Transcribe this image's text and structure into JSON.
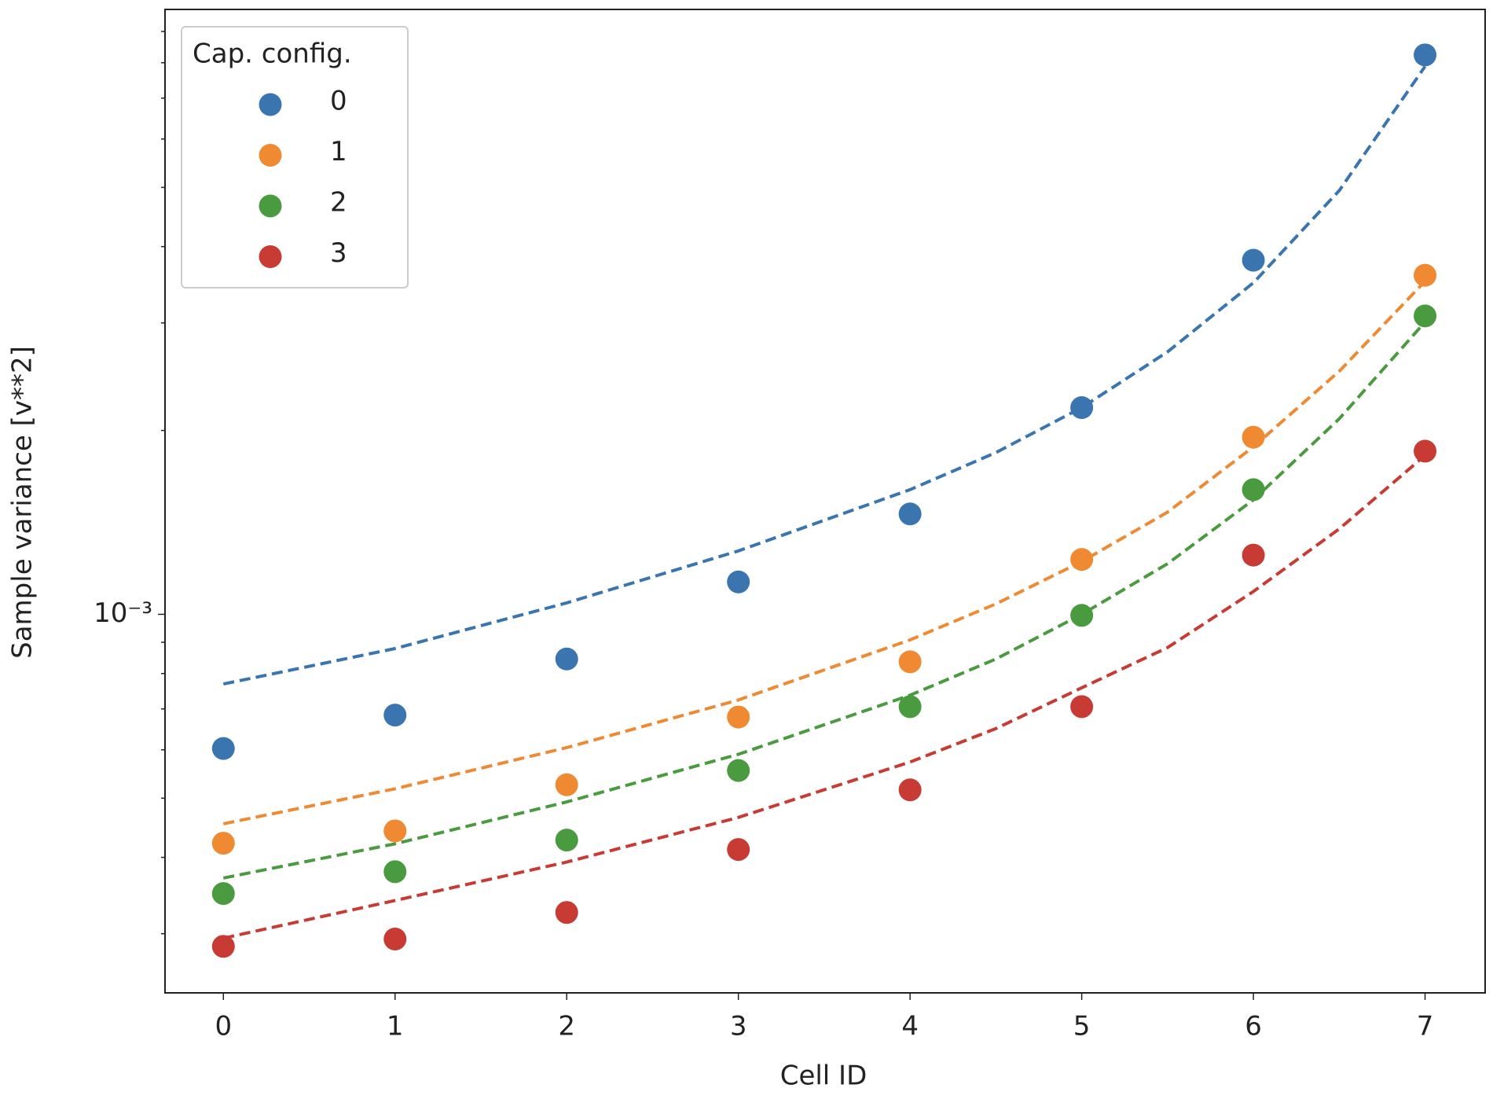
{
  "chart_data": {
    "type": "scatter",
    "xlabel": "Cell ID",
    "ylabel": "Sample variance [v**2]",
    "legend_title": "Cap. config.",
    "legend": "upper left",
    "log_y": true,
    "grid": false,
    "x": [
      0,
      1,
      2,
      3,
      4,
      5,
      6,
      7
    ],
    "xlim": [
      -0.34,
      7.35
    ],
    "xticks": [
      0,
      1,
      2,
      3,
      4,
      5,
      6,
      7
    ],
    "ylim": [
      0.00024,
      0.00978
    ],
    "yticks": [
      {
        "value": 0.001,
        "label": "10⁻³"
      }
    ],
    "yminor_ticks": [
      0.0003,
      0.0004,
      0.0005,
      0.0006,
      0.0007,
      0.0008,
      0.0009,
      0.002,
      0.003,
      0.004,
      0.005,
      0.006,
      0.007,
      0.008,
      0.009
    ],
    "fit_x": [
      0,
      1,
      2,
      3,
      4,
      4.5,
      5,
      5.5,
      6,
      6.5,
      7
    ],
    "series": [
      {
        "name": "0",
        "color": "#3a75b0",
        "values": [
          0.000603,
          0.000684,
          0.000845,
          0.00113,
          0.00146,
          0.00218,
          0.0038,
          0.00824
        ],
        "fit_values": [
          0.000769,
          0.000879,
          0.001044,
          0.00127,
          0.0016,
          0.00184,
          0.00218,
          0.00269,
          0.00349,
          0.00494,
          0.00789
        ]
      },
      {
        "name": "1",
        "color": "#ef8a33",
        "values": [
          0.000422,
          0.000442,
          0.000526,
          0.000679,
          0.000836,
          0.00123,
          0.00195,
          0.00359
        ],
        "fit_values": [
          0.000454,
          0.000518,
          0.000605,
          0.000724,
          0.000908,
          0.00104,
          0.00122,
          0.00147,
          0.00188,
          0.0025,
          0.00351
        ]
      },
      {
        "name": "2",
        "color": "#4a9a3f",
        "values": [
          0.000349,
          0.000379,
          0.000427,
          0.000555,
          0.000706,
          0.000996,
          0.0016,
          0.00308
        ],
        "fit_values": [
          0.00037,
          0.000421,
          0.000493,
          0.00059,
          0.000737,
          0.000845,
          0.001,
          0.00121,
          0.00154,
          0.00209,
          0.00301
        ]
      },
      {
        "name": "3",
        "color": "#c83b34",
        "values": [
          0.000286,
          0.000294,
          0.000325,
          0.000412,
          0.000516,
          0.000706,
          0.00125,
          0.00185
        ],
        "fit_values": [
          0.000295,
          0.00034,
          0.000393,
          0.000465,
          0.000573,
          0.00065,
          0.000758,
          0.000882,
          0.00109,
          0.00138,
          0.00182
        ]
      }
    ]
  }
}
